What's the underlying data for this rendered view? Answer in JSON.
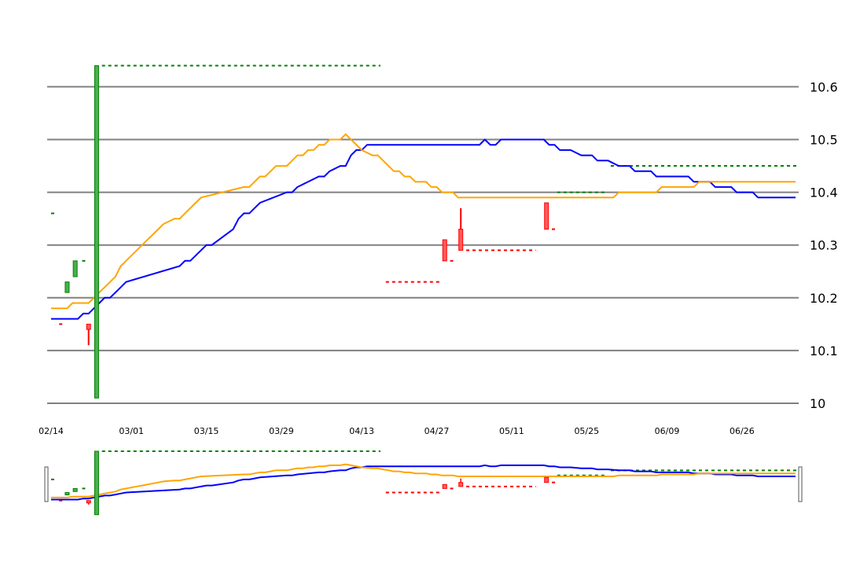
{
  "chart_data": {
    "type": "candlestick",
    "title": "",
    "xlabel": "",
    "ylabel": "",
    "ylim": [
      10.0,
      10.65
    ],
    "grid": true,
    "yticks": [
      "10",
      "10.1",
      "10.2",
      "10.3",
      "10.4",
      "10.5",
      "10.6"
    ],
    "xticks": [
      {
        "label": "02/14",
        "day": 0
      },
      {
        "label": "03/01",
        "day": 15
      },
      {
        "label": "03/15",
        "day": 29
      },
      {
        "label": "03/29",
        "day": 43
      },
      {
        "label": "04/13",
        "day": 58
      },
      {
        "label": "04/27",
        "day": 72
      },
      {
        "label": "05/11",
        "day": 86
      },
      {
        "label": "05/25",
        "day": 100
      },
      {
        "label": "06/09",
        "day": 115
      },
      {
        "label": "06/26",
        "day": 129
      }
    ],
    "candles": [
      {
        "day": 3,
        "open": 10.21,
        "close": 10.23,
        "high": 10.23,
        "low": 10.21,
        "dir": "up"
      },
      {
        "day": 4.5,
        "open": 10.24,
        "close": 10.27,
        "high": 10.27,
        "low": 10.24,
        "dir": "up"
      },
      {
        "day": 7,
        "open": 10.15,
        "close": 10.14,
        "high": 10.15,
        "low": 10.11,
        "dir": "down"
      },
      {
        "day": 8.5,
        "open": 10.01,
        "close": 10.64,
        "high": 10.64,
        "low": 10.01,
        "dir": "up"
      },
      {
        "day": 73.5,
        "open": 10.31,
        "close": 10.27,
        "high": 10.31,
        "low": 10.27,
        "dir": "down"
      },
      {
        "day": 76.5,
        "open": 10.33,
        "close": 10.29,
        "high": 10.37,
        "low": 10.29,
        "dir": "down"
      },
      {
        "day": 92.5,
        "open": 10.38,
        "close": 10.33,
        "high": 10.38,
        "low": 10.33,
        "dir": "down"
      }
    ],
    "levels": [
      {
        "x0": 0,
        "x1": 0.8,
        "y": 10.36,
        "color": "#008000"
      },
      {
        "x0": 1.5,
        "x1": 2.3,
        "y": 10.15,
        "color": "#ff0000"
      },
      {
        "x0": 5.8,
        "x1": 6.6,
        "y": 10.27,
        "color": "#008000"
      },
      {
        "x0": 9.5,
        "x1": 61.5,
        "y": 10.64,
        "color": "#008000"
      },
      {
        "x0": 62.5,
        "x1": 72.5,
        "y": 10.23,
        "color": "#ff0000"
      },
      {
        "x0": 74.5,
        "x1": 75.5,
        "y": 10.27,
        "color": "#ff0000"
      },
      {
        "x0": 77.5,
        "x1": 90.5,
        "y": 10.29,
        "color": "#ff0000"
      },
      {
        "x0": 93.5,
        "x1": 94.5,
        "y": 10.33,
        "color": "#ff0000"
      },
      {
        "x0": 94.5,
        "x1": 103.5,
        "y": 10.4,
        "color": "#008000"
      },
      {
        "x0": 104.5,
        "x1": 139.5,
        "y": 10.45,
        "color": "#008000"
      }
    ],
    "series": [
      {
        "color": "#0000ff",
        "x": [
          0,
          4,
          5,
          6,
          7,
          8,
          9,
          10,
          11,
          12,
          13,
          14,
          24,
          25,
          26,
          29,
          30,
          34,
          35,
          36,
          37,
          38,
          39,
          44,
          45,
          46,
          50,
          51,
          52,
          54,
          55,
          56,
          57,
          58,
          59,
          60,
          61,
          62,
          63,
          64,
          80,
          81,
          82,
          83,
          84,
          85,
          92,
          93,
          94,
          95,
          96,
          97,
          99,
          100,
          101,
          102,
          103,
          104,
          106,
          107,
          108,
          109,
          110,
          112,
          113,
          114,
          119,
          120,
          121,
          122,
          123,
          124,
          126,
          127,
          128,
          129,
          130,
          131,
          132,
          133,
          134,
          135,
          136,
          137,
          139
        ],
        "y": [
          10.16,
          10.16,
          10.16,
          10.17,
          10.17,
          10.18,
          10.19,
          10.2,
          10.2,
          10.21,
          10.22,
          10.23,
          10.26,
          10.27,
          10.27,
          10.3,
          10.3,
          10.33,
          10.35,
          10.36,
          10.36,
          10.37,
          10.38,
          10.4,
          10.4,
          10.41,
          10.43,
          10.43,
          10.44,
          10.45,
          10.45,
          10.47,
          10.48,
          10.48,
          10.49,
          10.49,
          10.49,
          10.49,
          10.49,
          10.49,
          10.49,
          10.5,
          10.49,
          10.49,
          10.5,
          10.5,
          10.5,
          10.49,
          10.49,
          10.48,
          10.48,
          10.48,
          10.47,
          10.47,
          10.47,
          10.46,
          10.46,
          10.46,
          10.45,
          10.45,
          10.45,
          10.44,
          10.44,
          10.44,
          10.43,
          10.43,
          10.43,
          10.42,
          10.42,
          10.42,
          10.42,
          10.41,
          10.41,
          10.41,
          10.4,
          10.4,
          10.4,
          10.4,
          10.39,
          10.39,
          10.39,
          10.39,
          10.39,
          10.39,
          10.39
        ]
      },
      {
        "color": "#ffa500",
        "x": [
          0,
          3,
          4,
          7,
          8,
          9,
          10,
          12,
          13,
          14,
          16,
          17,
          18,
          20,
          21,
          23,
          24,
          25,
          26,
          27,
          28,
          36,
          37,
          38,
          39,
          40,
          41,
          42,
          44,
          46,
          47,
          48,
          49,
          50,
          51,
          52,
          53,
          54,
          55,
          56,
          58,
          60,
          61,
          62,
          63,
          64,
          65,
          66,
          67,
          68,
          69,
          70,
          71,
          72,
          73,
          74,
          75,
          76,
          77,
          78,
          79,
          80,
          81,
          83,
          85,
          86,
          87,
          88,
          89,
          90,
          91,
          92,
          93,
          94,
          95,
          99,
          100,
          101,
          102,
          103,
          104,
          105,
          106,
          109,
          110,
          111,
          112,
          113,
          114,
          116,
          120,
          121,
          122,
          123,
          124,
          125,
          126,
          127,
          128,
          139
        ],
        "y": [
          10.18,
          10.18,
          10.19,
          10.19,
          10.2,
          10.21,
          10.22,
          10.24,
          10.26,
          10.27,
          10.29,
          10.3,
          10.31,
          10.33,
          10.34,
          10.35,
          10.35,
          10.36,
          10.37,
          10.38,
          10.39,
          10.41,
          10.41,
          10.42,
          10.43,
          10.43,
          10.44,
          10.45,
          10.45,
          10.47,
          10.47,
          10.48,
          10.48,
          10.49,
          10.49,
          10.5,
          10.5,
          10.5,
          10.51,
          10.5,
          10.48,
          10.47,
          10.47,
          10.46,
          10.45,
          10.44,
          10.44,
          10.43,
          10.43,
          10.42,
          10.42,
          10.42,
          10.41,
          10.41,
          10.4,
          10.4,
          10.4,
          10.39,
          10.39,
          10.39,
          10.39,
          10.39,
          10.39,
          10.39,
          10.39,
          10.39,
          10.39,
          10.39,
          10.39,
          10.39,
          10.39,
          10.39,
          10.39,
          10.39,
          10.39,
          10.39,
          10.39,
          10.39,
          10.39,
          10.39,
          10.39,
          10.39,
          10.4,
          10.4,
          10.4,
          10.4,
          10.4,
          10.4,
          10.41,
          10.41,
          10.41,
          10.42,
          10.42,
          10.42,
          10.42,
          10.42,
          10.42,
          10.42,
          10.42,
          10.42
        ]
      }
    ],
    "navigator": {
      "visible": true
    }
  }
}
